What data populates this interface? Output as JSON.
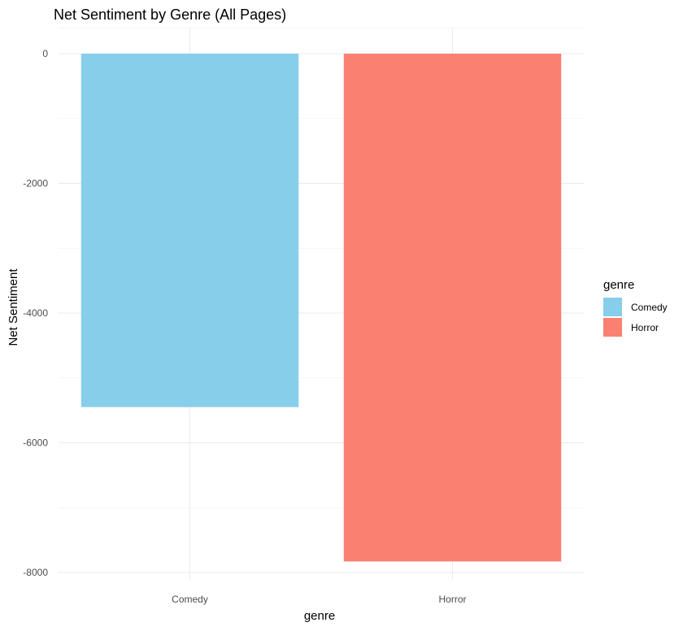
{
  "chart_data": {
    "type": "bar",
    "title": "Net Sentiment by Genre (All Pages)",
    "xlabel": "genre",
    "ylabel": "Net Sentiment",
    "categories": [
      "Comedy",
      "Horror"
    ],
    "values": [
      -5450,
      -7830
    ],
    "colors": [
      "#87CEEB",
      "#FA8072"
    ],
    "ylim": [
      -8000,
      0
    ],
    "yticks": [
      0,
      -2000,
      -4000,
      -6000,
      -8000
    ],
    "ytick_labels": [
      "0",
      "-2000",
      "-4000",
      "-6000",
      "-8000"
    ],
    "grid": true,
    "legend": {
      "title": "genre",
      "position": "right",
      "entries": [
        "Comedy",
        "Horror"
      ]
    }
  }
}
